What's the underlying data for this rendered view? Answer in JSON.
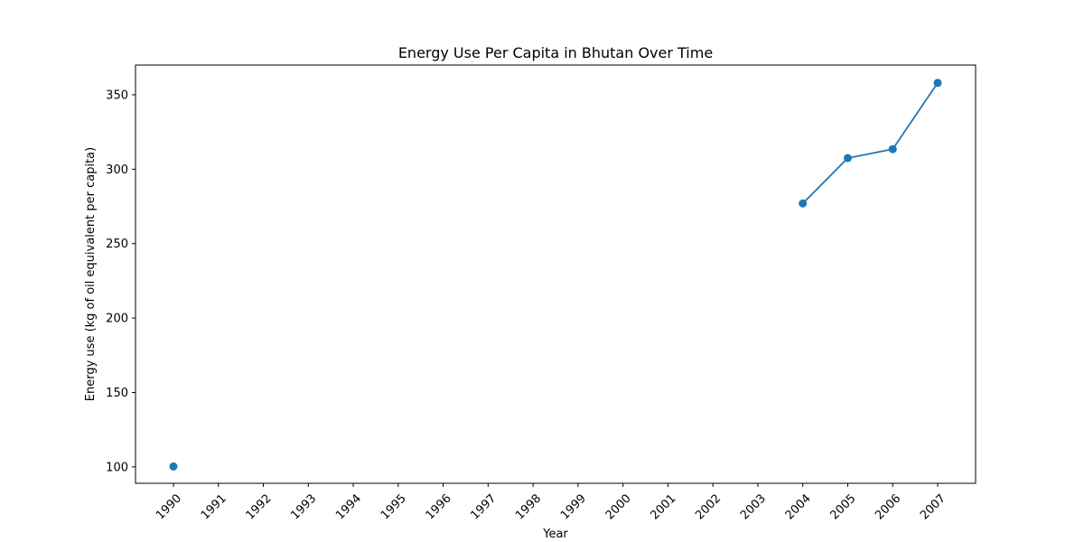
{
  "chart_data": {
    "type": "line",
    "title": "Energy Use Per Capita in Bhutan Over Time",
    "xlabel": "Year",
    "ylabel": "Energy use (kg of oil equivalent per capita)",
    "categories": [
      "1990",
      "1991",
      "1992",
      "1993",
      "1994",
      "1995",
      "1996",
      "1997",
      "1998",
      "1999",
      "2000",
      "2001",
      "2002",
      "2003",
      "2004",
      "2005",
      "2006",
      "2007"
    ],
    "series": [
      {
        "values": [
          100.3,
          null,
          null,
          null,
          null,
          null,
          null,
          null,
          null,
          null,
          null,
          null,
          null,
          null,
          277,
          307.5,
          313.5,
          358
        ],
        "color": "#1f77b4"
      }
    ],
    "yticks": [
      100,
      150,
      200,
      250,
      300,
      350
    ],
    "ylim": [
      89,
      370
    ],
    "grid": false,
    "legend": "none"
  }
}
